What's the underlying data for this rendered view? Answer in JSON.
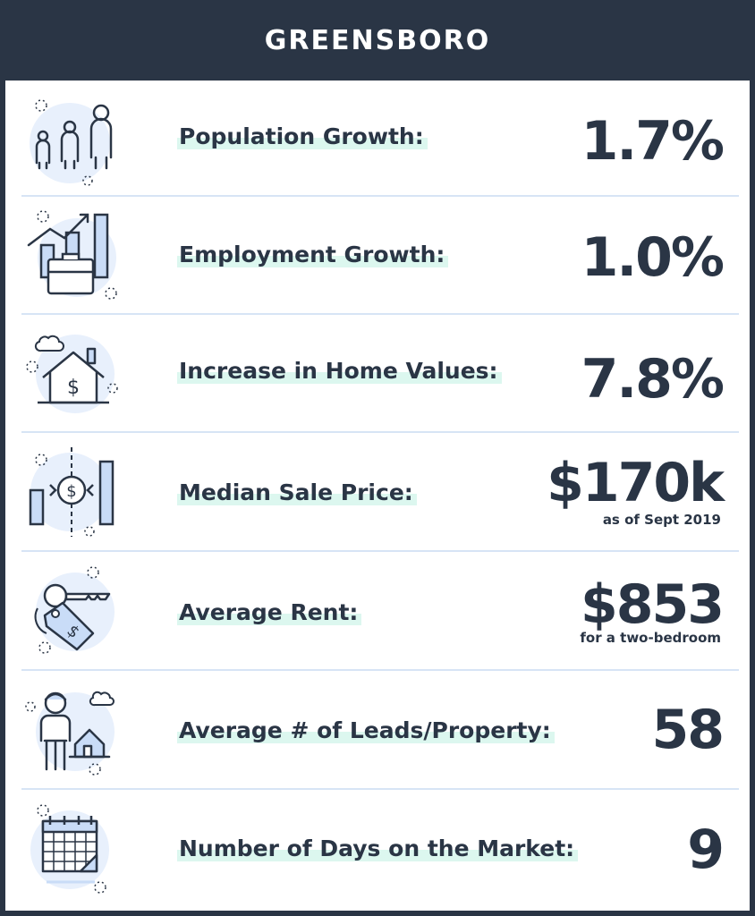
{
  "header": {
    "title": "GREENSBORO"
  },
  "rows": [
    {
      "label": "Population Growth:",
      "value": "1.7%",
      "icon": "people-icon"
    },
    {
      "label": "Employment Growth:",
      "value": "1.0%",
      "icon": "briefcase-chart-icon"
    },
    {
      "label": "Increase in Home Values:",
      "value": "7.8%",
      "icon": "house-dollar-icon"
    },
    {
      "label": "Median Sale Price:",
      "value": "$170k",
      "note": "as  of Sept 2019",
      "icon": "price-bars-icon"
    },
    {
      "label": "Average Rent:",
      "value": "$853",
      "note": "for a two-bedroom",
      "icon": "key-tag-icon"
    },
    {
      "label": "Average # of Leads/Property:",
      "value": "58",
      "icon": "person-house-icon"
    },
    {
      "label": "Number of Days on the Market:",
      "value": "9",
      "icon": "calendar-icon"
    }
  ],
  "colors": {
    "header_bg": "#2a3545",
    "text": "#2a3545",
    "highlight": "#dcf7ef",
    "divider": "#d7e4f5",
    "icon_bg": "#e8f0fc",
    "icon_stroke": "#2a3545",
    "icon_fill": "#c9dcf7"
  }
}
